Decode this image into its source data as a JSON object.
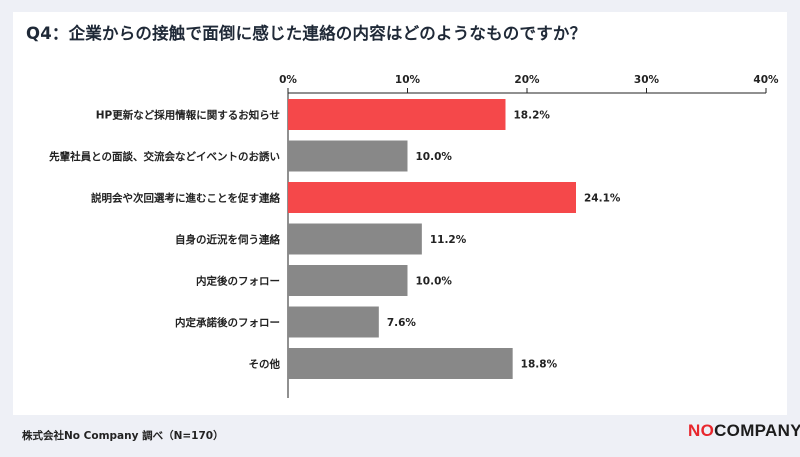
{
  "title": "Q4：企業からの接触で面倒に感じた連絡の内容はどのようなものですか？",
  "source": "株式会社No Company 調べ（N=170）",
  "logo": {
    "part1": "NO",
    "part2": "COMPANY"
  },
  "colors": {
    "highlight": "#f5484a",
    "default": "#888888",
    "background": "#eef0f6"
  },
  "chart_data": {
    "type": "bar",
    "orientation": "horizontal",
    "categories": [
      "HP更新など採用情報に関するお知らせ",
      "先輩社員との面談、交流会などイベントのお誘い",
      "説明会や次回選考に進むことを促す連絡",
      "自身の近況を伺う連絡",
      "内定後のフォロー",
      "内定承諾後のフォロー",
      "その他"
    ],
    "values": [
      18.2,
      10.0,
      24.1,
      11.2,
      10.0,
      7.6,
      18.8
    ],
    "value_labels": [
      "18.2%",
      "10.0%",
      "24.1%",
      "11.2%",
      "10.0%",
      "7.6%",
      "18.8%"
    ],
    "highlighted": [
      true,
      false,
      true,
      false,
      false,
      false,
      false
    ],
    "xlim": [
      0,
      40
    ],
    "xticks": [
      0,
      10,
      20,
      30,
      40
    ],
    "xtick_labels": [
      "0%",
      "10%",
      "20%",
      "30%",
      "40%"
    ],
    "axis_position": "top",
    "grid": false,
    "legend": "none"
  }
}
